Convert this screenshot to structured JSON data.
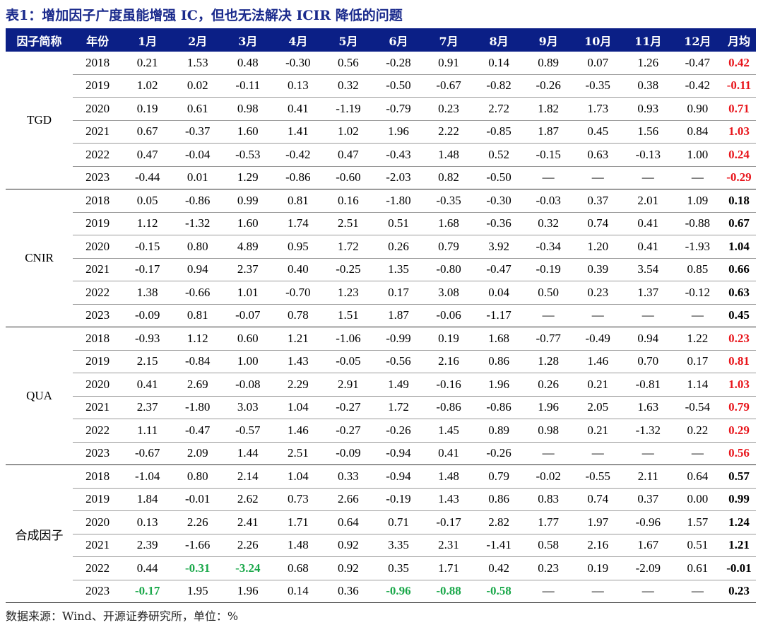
{
  "title": "表1：增加因子广度虽能增强 IC，但也无法解决 ICIR 降低的问题",
  "headers": [
    "因子简称",
    "年份",
    "1月",
    "2月",
    "3月",
    "4月",
    "5月",
    "6月",
    "7月",
    "8月",
    "9月",
    "10月",
    "11月",
    "12月",
    "月均"
  ],
  "colors": {
    "header_bg": "#0b1f86",
    "title": "#1a2a8c",
    "highlight_red": "#e8151b",
    "highlight_green": "#1aa84a"
  },
  "groups": [
    {
      "name": "TGD",
      "avg_color": "red",
      "rows": [
        {
          "year": "2018",
          "values": [
            "0.21",
            "1.53",
            "0.48",
            "-0.30",
            "0.56",
            "-0.28",
            "0.91",
            "0.14",
            "0.89",
            "0.07",
            "1.26",
            "-0.47"
          ],
          "avg": "0.42"
        },
        {
          "year": "2019",
          "values": [
            "1.02",
            "0.02",
            "-0.11",
            "0.13",
            "0.32",
            "-0.50",
            "-0.67",
            "-0.82",
            "-0.26",
            "-0.35",
            "0.38",
            "-0.42"
          ],
          "avg": "-0.11"
        },
        {
          "year": "2020",
          "values": [
            "0.19",
            "0.61",
            "0.98",
            "0.41",
            "-1.19",
            "-0.79",
            "0.23",
            "2.72",
            "1.82",
            "1.73",
            "0.93",
            "0.90"
          ],
          "avg": "0.71"
        },
        {
          "year": "2021",
          "values": [
            "0.67",
            "-0.37",
            "1.60",
            "1.41",
            "1.02",
            "1.96",
            "2.22",
            "-0.85",
            "1.87",
            "0.45",
            "1.56",
            "0.84"
          ],
          "avg": "1.03"
        },
        {
          "year": "2022",
          "values": [
            "0.47",
            "-0.04",
            "-0.53",
            "-0.42",
            "0.47",
            "-0.43",
            "1.48",
            "0.52",
            "-0.15",
            "0.63",
            "-0.13",
            "1.00"
          ],
          "avg": "0.24"
        },
        {
          "year": "2023",
          "values": [
            "-0.44",
            "0.01",
            "1.29",
            "-0.86",
            "-0.60",
            "-2.03",
            "0.82",
            "-0.50",
            "—",
            "—",
            "—",
            "—"
          ],
          "avg": "-0.29"
        }
      ]
    },
    {
      "name": "CNIR",
      "avg_color": "black",
      "rows": [
        {
          "year": "2018",
          "values": [
            "0.05",
            "-0.86",
            "0.99",
            "0.81",
            "0.16",
            "-1.80",
            "-0.35",
            "-0.30",
            "-0.03",
            "0.37",
            "2.01",
            "1.09"
          ],
          "avg": "0.18"
        },
        {
          "year": "2019",
          "values": [
            "1.12",
            "-1.32",
            "1.60",
            "1.74",
            "2.51",
            "0.51",
            "1.68",
            "-0.36",
            "0.32",
            "0.74",
            "0.41",
            "-0.88"
          ],
          "avg": "0.67"
        },
        {
          "year": "2020",
          "values": [
            "-0.15",
            "0.80",
            "4.89",
            "0.95",
            "1.72",
            "0.26",
            "0.79",
            "3.92",
            "-0.34",
            "1.20",
            "0.41",
            "-1.93"
          ],
          "avg": "1.04"
        },
        {
          "year": "2021",
          "values": [
            "-0.17",
            "0.94",
            "2.37",
            "0.40",
            "-0.25",
            "1.35",
            "-0.80",
            "-0.47",
            "-0.19",
            "0.39",
            "3.54",
            "0.85"
          ],
          "avg": "0.66"
        },
        {
          "year": "2022",
          "values": [
            "1.38",
            "-0.66",
            "1.01",
            "-0.70",
            "1.23",
            "0.17",
            "3.08",
            "0.04",
            "0.50",
            "0.23",
            "1.37",
            "-0.12"
          ],
          "avg": "0.63"
        },
        {
          "year": "2023",
          "values": [
            "-0.09",
            "0.81",
            "-0.07",
            "0.78",
            "1.51",
            "1.87",
            "-0.06",
            "-1.17",
            "—",
            "—",
            "—",
            "—"
          ],
          "avg": "0.45"
        }
      ]
    },
    {
      "name": "QUA",
      "avg_color": "red",
      "rows": [
        {
          "year": "2018",
          "values": [
            "-0.93",
            "1.12",
            "0.60",
            "1.21",
            "-1.06",
            "-0.99",
            "0.19",
            "1.68",
            "-0.77",
            "-0.49",
            "0.94",
            "1.22"
          ],
          "avg": "0.23"
        },
        {
          "year": "2019",
          "values": [
            "2.15",
            "-0.84",
            "1.00",
            "1.43",
            "-0.05",
            "-0.56",
            "2.16",
            "0.86",
            "1.28",
            "1.46",
            "0.70",
            "0.17"
          ],
          "avg": "0.81"
        },
        {
          "year": "2020",
          "values": [
            "0.41",
            "2.69",
            "-0.08",
            "2.29",
            "2.91",
            "1.49",
            "-0.16",
            "1.96",
            "0.26",
            "0.21",
            "-0.81",
            "1.14"
          ],
          "avg": "1.03"
        },
        {
          "year": "2021",
          "values": [
            "2.37",
            "-1.80",
            "3.03",
            "1.04",
            "-0.27",
            "1.72",
            "-0.86",
            "-0.86",
            "1.96",
            "2.05",
            "1.63",
            "-0.54"
          ],
          "avg": "0.79"
        },
        {
          "year": "2022",
          "values": [
            "1.11",
            "-0.47",
            "-0.57",
            "1.46",
            "-0.27",
            "-0.26",
            "1.45",
            "0.89",
            "0.98",
            "0.21",
            "-1.32",
            "0.22"
          ],
          "avg": "0.29"
        },
        {
          "year": "2023",
          "values": [
            "-0.67",
            "2.09",
            "1.44",
            "2.51",
            "-0.09",
            "-0.94",
            "0.41",
            "-0.26",
            "—",
            "—",
            "—",
            "—"
          ],
          "avg": "0.56"
        }
      ]
    },
    {
      "name": "合成因子",
      "avg_color": "black",
      "rows": [
        {
          "year": "2018",
          "values": [
            "-1.04",
            "0.80",
            "2.14",
            "1.04",
            "0.33",
            "-0.94",
            "1.48",
            "0.79",
            "-0.02",
            "-0.55",
            "2.11",
            "0.64"
          ],
          "avg": "0.57"
        },
        {
          "year": "2019",
          "values": [
            "1.84",
            "-0.01",
            "2.62",
            "0.73",
            "2.66",
            "-0.19",
            "1.43",
            "0.86",
            "0.83",
            "0.74",
            "0.37",
            "0.00"
          ],
          "avg": "0.99"
        },
        {
          "year": "2020",
          "values": [
            "0.13",
            "2.26",
            "2.41",
            "1.71",
            "0.64",
            "0.71",
            "-0.17",
            "2.82",
            "1.77",
            "1.97",
            "-0.96",
            "1.57"
          ],
          "avg": "1.24"
        },
        {
          "year": "2021",
          "values": [
            "2.39",
            "-1.66",
            "2.26",
            "1.48",
            "0.92",
            "3.35",
            "2.31",
            "-1.41",
            "0.58",
            "2.16",
            "1.67",
            "0.51"
          ],
          "avg": "1.21"
        },
        {
          "year": "2022",
          "values": [
            "0.44",
            "-0.31",
            "-3.24",
            "0.68",
            "0.92",
            "0.35",
            "1.71",
            "0.42",
            "0.23",
            "0.19",
            "-2.09",
            "0.61"
          ],
          "avg": "-0.01",
          "green": [
            1,
            2
          ]
        },
        {
          "year": "2023",
          "values": [
            "-0.17",
            "1.95",
            "1.96",
            "0.14",
            "0.36",
            "-0.96",
            "-0.88",
            "-0.58",
            "—",
            "—",
            "—",
            "—"
          ],
          "avg": "0.23",
          "green": [
            0,
            5,
            6,
            7
          ]
        }
      ]
    }
  ],
  "source": "数据来源：Wind、开源证券研究所，单位：%"
}
